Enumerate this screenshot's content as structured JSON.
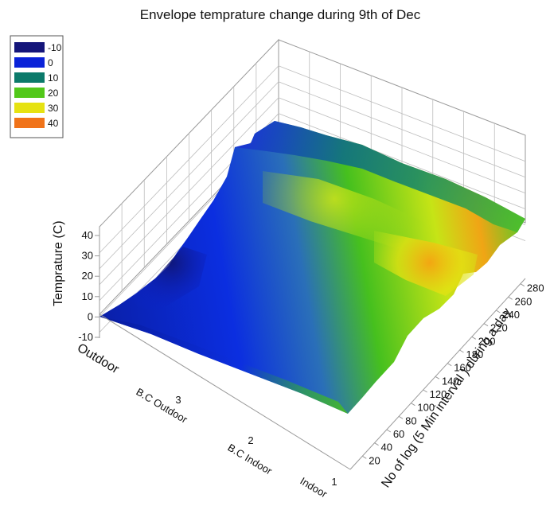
{
  "chart_data": {
    "type": "surface3d",
    "title": "Envelope temprature change during 9th of Dec",
    "z_label": "Temprature (C)",
    "y_label": "No of log (5 Min interval ) during a day",
    "x_categories": [
      "Outdoor",
      "B.C Outdoor",
      "B.C Indoor",
      "Indoor"
    ],
    "x_ticks": [
      "3",
      "2",
      "1"
    ],
    "y_ticks": [
      20,
      40,
      60,
      80,
      100,
      120,
      140,
      160,
      180,
      200,
      220,
      240,
      260,
      280
    ],
    "z_ticks": [
      -10,
      0,
      10,
      20,
      30,
      40
    ],
    "zlim": [
      -10,
      40
    ],
    "ylim": [
      0,
      288
    ],
    "grid": true,
    "legend_position": "top-left",
    "legend": [
      {
        "label": "-10",
        "color": "#14157a"
      },
      {
        "label": "0",
        "color": "#0a22d8"
      },
      {
        "label": "10",
        "color": "#0b7a6a"
      },
      {
        "label": "20",
        "color": "#52c81a"
      },
      {
        "label": "30",
        "color": "#e6e212"
      },
      {
        "label": "40",
        "color": "#f0731a"
      }
    ],
    "temperature_by_log": [
      {
        "log": 0,
        "outdoor": -2,
        "bc_outdoor": 2,
        "bc_indoor": 10,
        "indoor": 18
      },
      {
        "log": 40,
        "outdoor": -3,
        "bc_outdoor": 1,
        "bc_indoor": 10,
        "indoor": 19
      },
      {
        "log": 80,
        "outdoor": -1,
        "bc_outdoor": 3,
        "bc_indoor": 12,
        "indoor": 20
      },
      {
        "log": 120,
        "outdoor": 3,
        "bc_outdoor": 8,
        "bc_indoor": 16,
        "indoor": 22
      },
      {
        "log": 160,
        "outdoor": 8,
        "bc_outdoor": 14,
        "bc_indoor": 22,
        "indoor": 27
      },
      {
        "log": 200,
        "outdoor": 10,
        "bc_outdoor": 16,
        "bc_indoor": 25,
        "indoor": 33
      },
      {
        "log": 240,
        "outdoor": 8,
        "bc_outdoor": 13,
        "bc_indoor": 20,
        "indoor": 24
      },
      {
        "log": 288,
        "outdoor": 5,
        "bc_outdoor": 10,
        "bc_indoor": 17,
        "indoor": 21
      }
    ]
  }
}
